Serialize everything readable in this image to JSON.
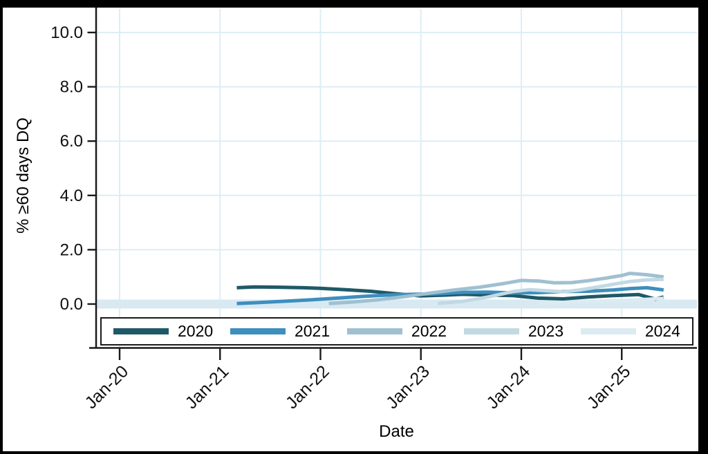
{
  "window": {
    "frame_color": "#000000",
    "canvas_color": "#ffffff"
  },
  "chart_data": {
    "type": "line",
    "title": "",
    "xlabel": "Date",
    "ylabel": "% ≥60 days DQ",
    "axis_color": "#1a1a1a",
    "x_axis": {
      "tick_labels": [
        "Jan-20",
        "Jan-21",
        "Jan-22",
        "Jan-23",
        "Jan-24",
        "Jan-25"
      ],
      "tick_months": [
        0,
        12,
        24,
        36,
        48,
        60
      ],
      "label_angle_deg": 45
    },
    "y_axis": {
      "ticks": [
        0,
        2,
        4,
        6,
        8,
        10
      ],
      "tick_labels": [
        "0.0",
        "2.0",
        "4.0",
        "6.0",
        "8.0",
        "10.0"
      ],
      "range_shown": [
        0,
        10
      ]
    },
    "grid": {
      "show": true,
      "color": "#ddedf6"
    },
    "zero_band": {
      "value": 0.0,
      "color": "#d9e9f2"
    },
    "legend": {
      "position": "bottom"
    },
    "series": [
      {
        "name": "2020",
        "color": "#1f5968",
        "points": [
          [
            "2021-03",
            0.6
          ],
          [
            "2021-05",
            0.63
          ],
          [
            "2021-08",
            0.62
          ],
          [
            "2021-11",
            0.6
          ],
          [
            "2022-01",
            0.58
          ],
          [
            "2022-04",
            0.53
          ],
          [
            "2022-07",
            0.47
          ],
          [
            "2022-10",
            0.38
          ],
          [
            "2023-01",
            0.3
          ],
          [
            "2023-04",
            0.33
          ],
          [
            "2023-06",
            0.36
          ],
          [
            "2023-09",
            0.33
          ],
          [
            "2023-12",
            0.31
          ],
          [
            "2024-03",
            0.22
          ],
          [
            "2024-06",
            0.19
          ],
          [
            "2024-09",
            0.26
          ],
          [
            "2024-12",
            0.31
          ],
          [
            "2025-03",
            0.35
          ],
          [
            "2025-05",
            0.18
          ],
          [
            "2025-06",
            0.26
          ]
        ]
      },
      {
        "name": "2021",
        "color": "#3d8fbe",
        "points": [
          [
            "2021-03",
            0.02
          ],
          [
            "2021-06",
            0.06
          ],
          [
            "2021-09",
            0.11
          ],
          [
            "2021-12",
            0.16
          ],
          [
            "2022-03",
            0.22
          ],
          [
            "2022-06",
            0.28
          ],
          [
            "2022-09",
            0.33
          ],
          [
            "2022-12",
            0.36
          ],
          [
            "2023-03",
            0.38
          ],
          [
            "2023-06",
            0.43
          ],
          [
            "2023-09",
            0.44
          ],
          [
            "2023-12",
            0.41
          ],
          [
            "2024-03",
            0.42
          ],
          [
            "2024-06",
            0.46
          ],
          [
            "2024-09",
            0.47
          ],
          [
            "2024-12",
            0.52
          ],
          [
            "2025-02",
            0.57
          ],
          [
            "2025-04",
            0.6
          ],
          [
            "2025-06",
            0.52
          ]
        ]
      },
      {
        "name": "2022",
        "color": "#9fc0d1",
        "points": [
          [
            "2022-02",
            0.02
          ],
          [
            "2022-05",
            0.08
          ],
          [
            "2022-08",
            0.16
          ],
          [
            "2022-11",
            0.27
          ],
          [
            "2023-02",
            0.4
          ],
          [
            "2023-05",
            0.52
          ],
          [
            "2023-08",
            0.62
          ],
          [
            "2023-11",
            0.76
          ],
          [
            "2024-01",
            0.87
          ],
          [
            "2024-03",
            0.85
          ],
          [
            "2024-05",
            0.78
          ],
          [
            "2024-07",
            0.79
          ],
          [
            "2024-09",
            0.86
          ],
          [
            "2024-11",
            0.95
          ],
          [
            "2025-01",
            1.05
          ],
          [
            "2025-02",
            1.13
          ],
          [
            "2025-04",
            1.08
          ],
          [
            "2025-06",
            1.0
          ]
        ]
      },
      {
        "name": "2023",
        "color": "#c2d9e4",
        "points": [
          [
            "2023-03",
            0.02
          ],
          [
            "2023-06",
            0.1
          ],
          [
            "2023-09",
            0.26
          ],
          [
            "2023-12",
            0.46
          ],
          [
            "2024-02",
            0.53
          ],
          [
            "2024-04",
            0.49
          ],
          [
            "2024-06",
            0.45
          ],
          [
            "2024-08",
            0.52
          ],
          [
            "2024-10",
            0.62
          ],
          [
            "2024-12",
            0.73
          ],
          [
            "2025-02",
            0.83
          ],
          [
            "2025-04",
            0.89
          ],
          [
            "2025-06",
            0.91
          ]
        ]
      },
      {
        "name": "2024",
        "color": "#dcebf2",
        "points": [
          [
            "2024-03",
            0.02
          ],
          [
            "2024-06",
            0.05
          ],
          [
            "2024-09",
            0.09
          ],
          [
            "2024-12",
            0.13
          ],
          [
            "2025-03",
            0.16
          ],
          [
            "2025-06",
            0.21
          ]
        ]
      }
    ]
  }
}
